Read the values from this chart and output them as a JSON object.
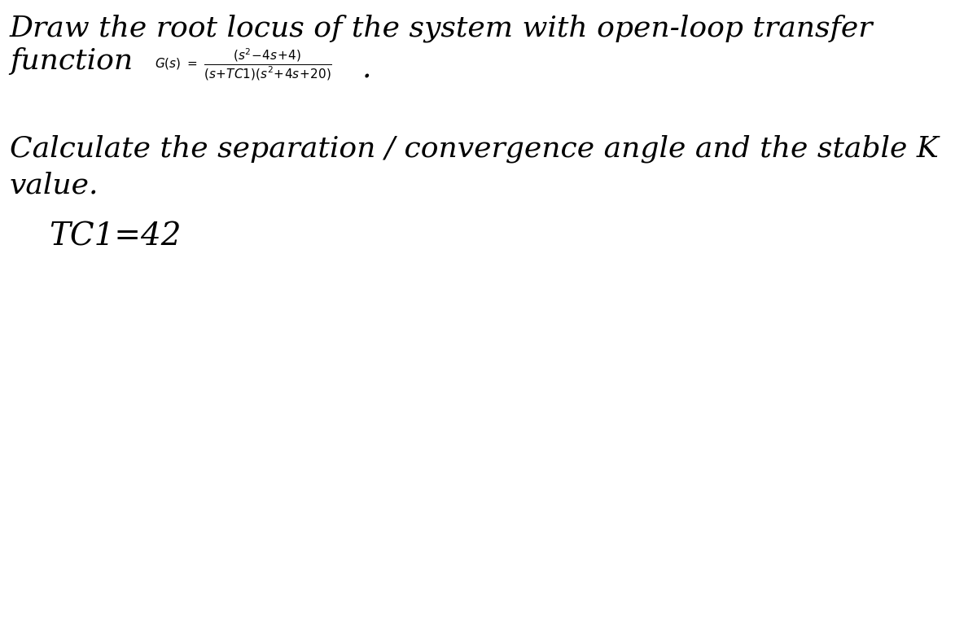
{
  "background_color": "#ffffff",
  "line1": "Draw the root locus of the system with open-loop transfer",
  "line2a": "function",
  "line3": "Calculate the separation / convergence angle and the stable K",
  "line4": "value.",
  "line5": "TC1=42",
  "font_size_main": 26,
  "font_size_formula": 11,
  "font_size_tc1": 28,
  "text_color": "#000000",
  "fig_width": 12.0,
  "fig_height": 7.63
}
